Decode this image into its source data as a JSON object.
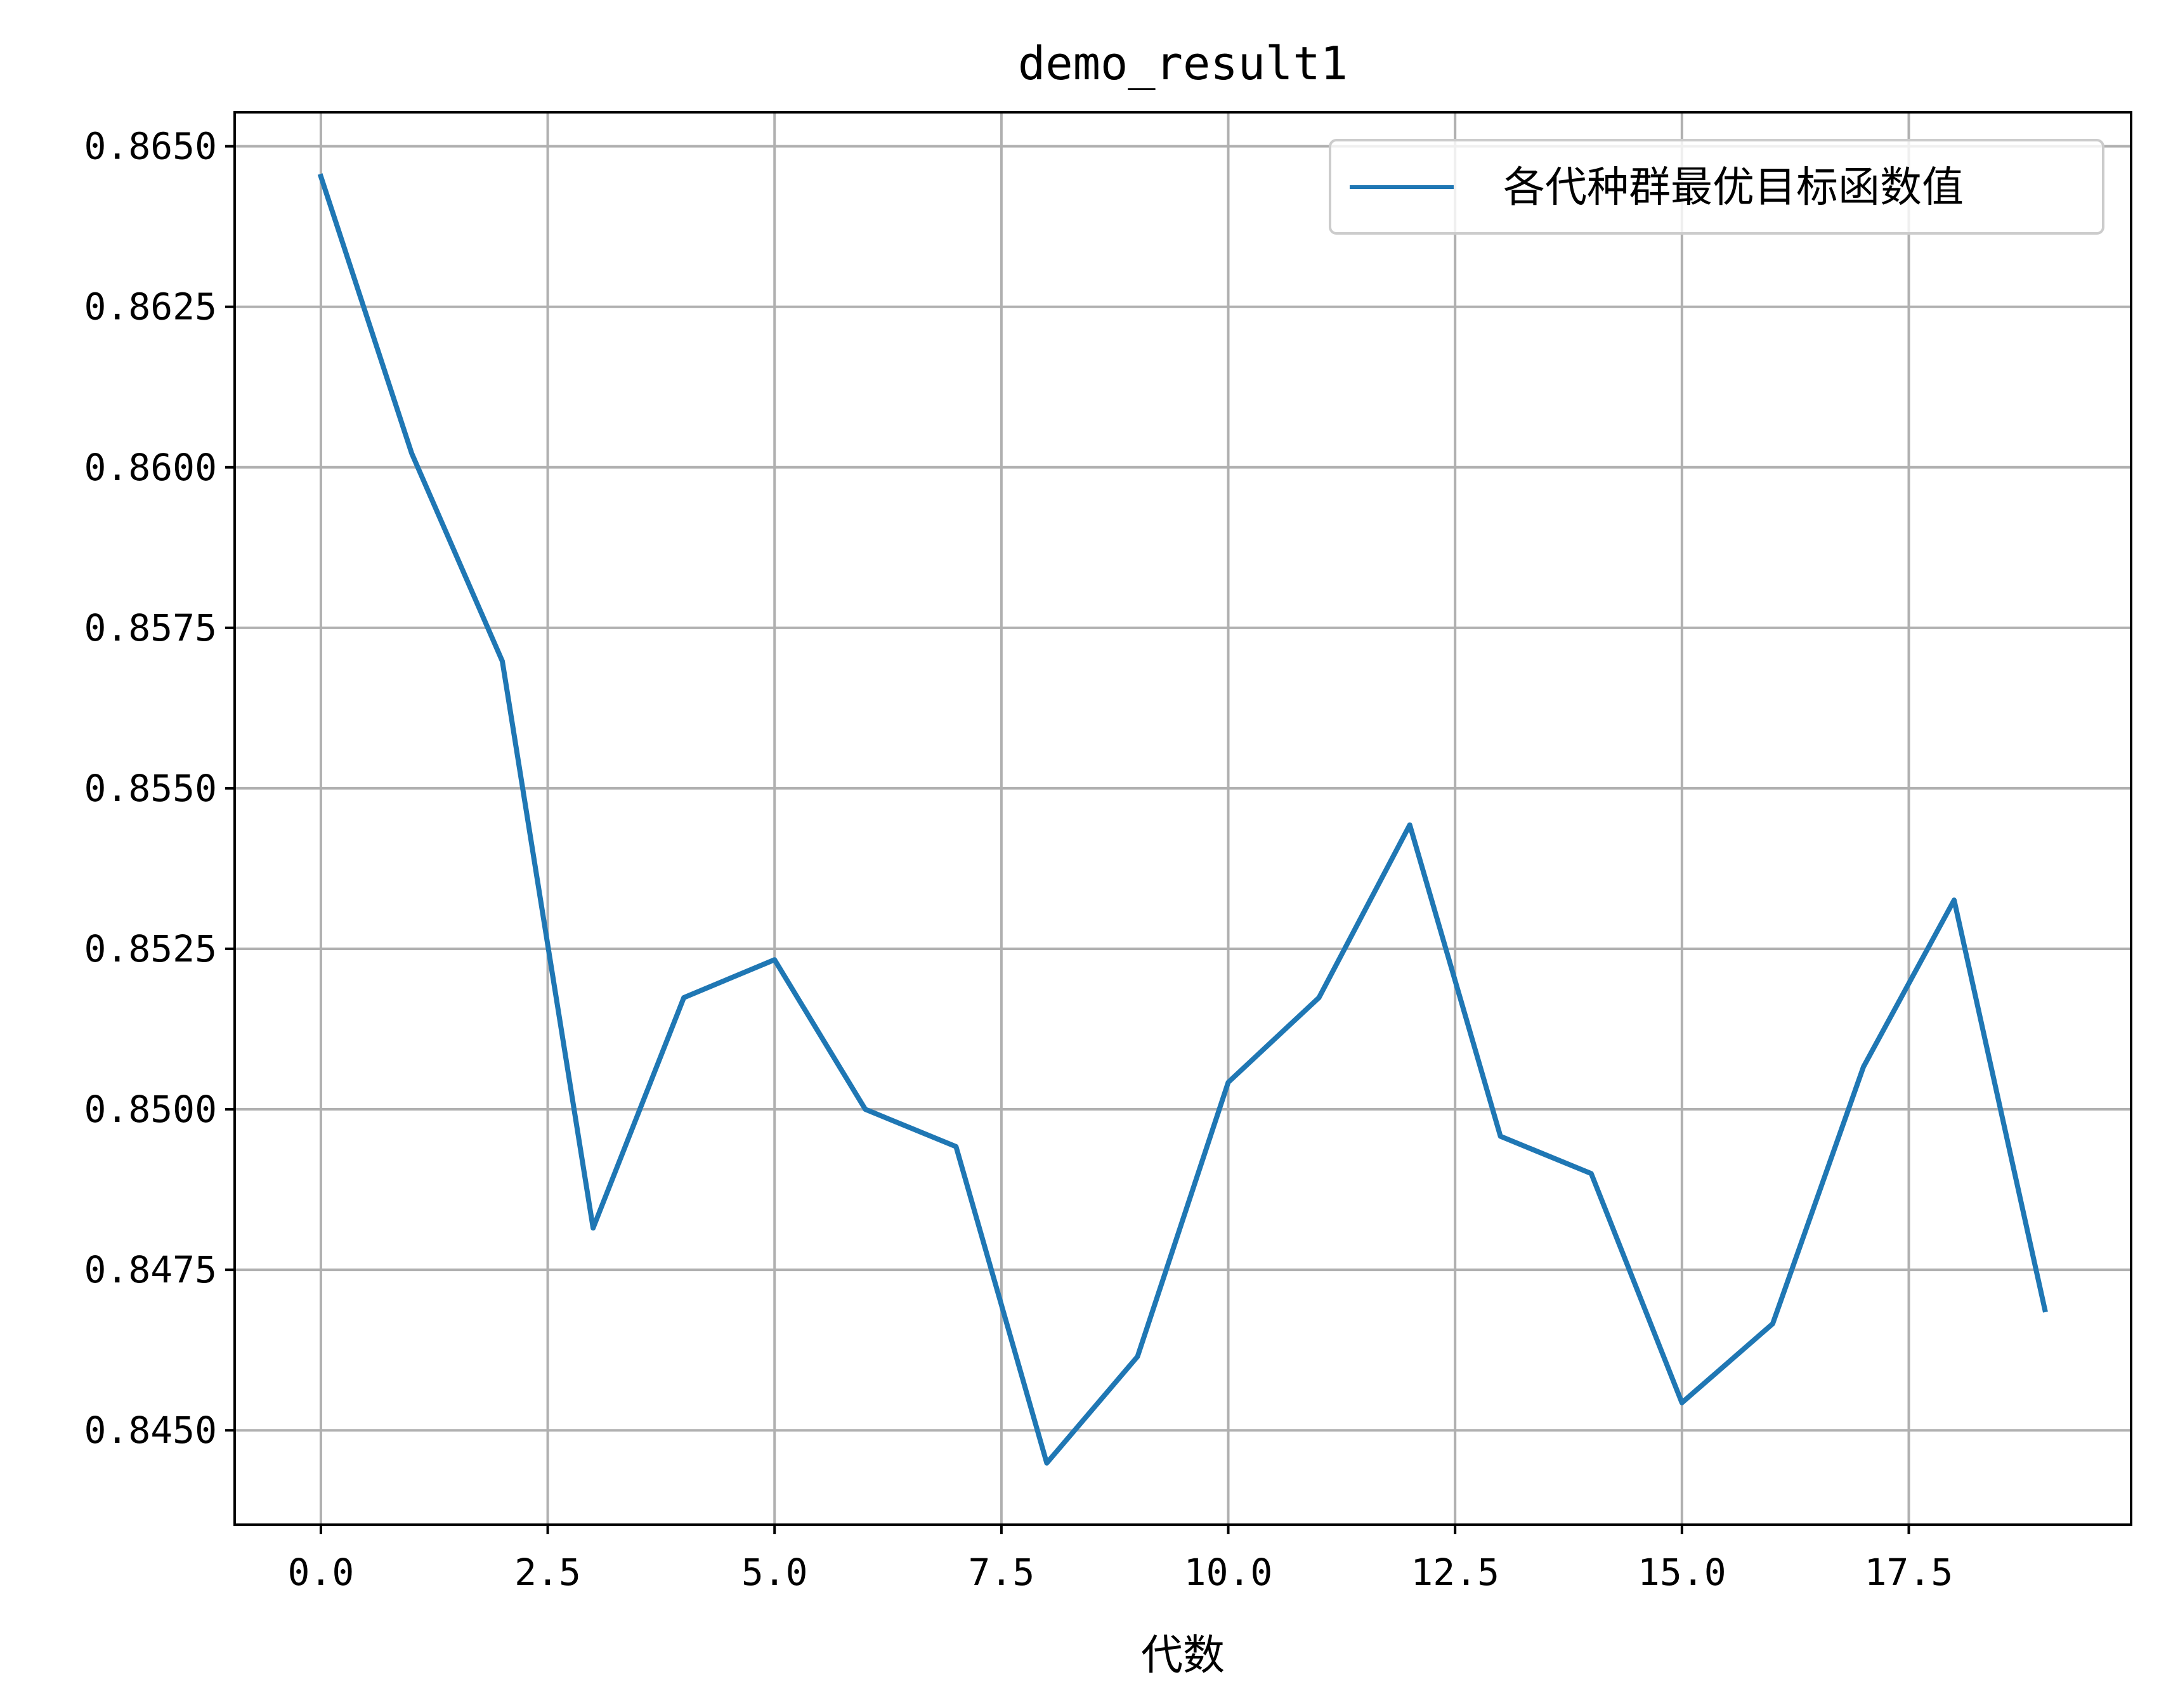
{
  "chart_data": {
    "type": "line",
    "title": "demo_result1",
    "xlabel": "代数",
    "ylabel": "",
    "grid": true,
    "legend_position": "upper right",
    "xlim": [
      -0.95,
      19.95
    ],
    "ylim": [
      0.84353,
      0.86553
    ],
    "x_ticks": [
      0.0,
      2.5,
      5.0,
      7.5,
      10.0,
      12.5,
      15.0,
      17.5
    ],
    "x_tick_labels": [
      "0.0",
      "2.5",
      "5.0",
      "7.5",
      "10.0",
      "12.5",
      "15.0",
      "17.5"
    ],
    "y_ticks": [
      0.845,
      0.8475,
      0.85,
      0.8525,
      0.855,
      0.8575,
      0.86,
      0.8625,
      0.865
    ],
    "y_tick_labels": [
      "0.8450",
      "0.8475",
      "0.8500",
      "0.8525",
      "0.8550",
      "0.8575",
      "0.8600",
      "0.8625",
      "0.8650"
    ],
    "x": [
      0,
      1,
      2,
      3,
      4,
      5,
      6,
      7,
      8,
      9,
      10,
      11,
      12,
      13,
      14,
      15,
      16,
      17,
      18,
      19
    ],
    "series": [
      {
        "name": "各代种群最优目标函数值",
        "color": "#1f77b4",
        "values": [
          0.86453,
          0.86022,
          0.85698,
          0.84815,
          0.85174,
          0.85233,
          0.85,
          0.84942,
          0.84449,
          0.84615,
          0.85042,
          0.85174,
          0.85443,
          0.84958,
          0.849,
          0.84543,
          0.84666,
          0.85066,
          0.85326,
          0.84688
        ]
      }
    ]
  }
}
